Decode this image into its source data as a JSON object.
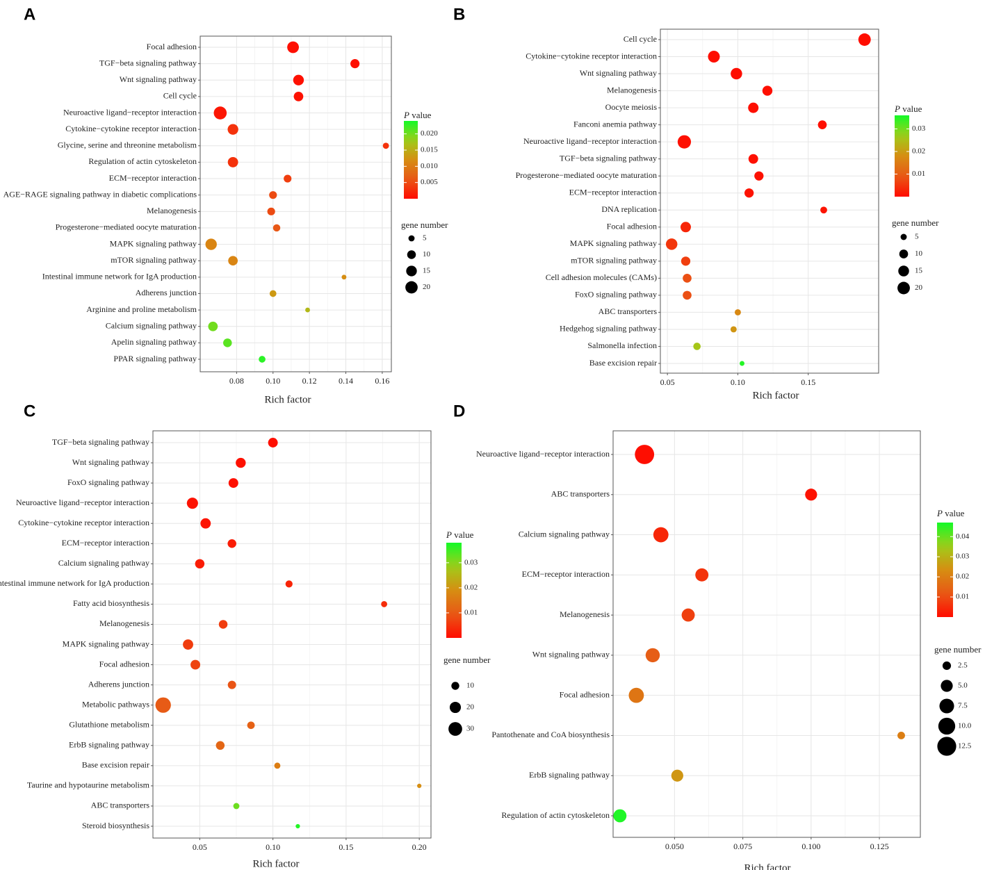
{
  "chart_data": [
    {
      "panel": "A",
      "type": "scatter",
      "xlabel": "Rich factor",
      "xlim": [
        0.06,
        0.165
      ],
      "xticks": [
        0.08,
        0.1,
        0.12,
        0.14,
        0.16
      ],
      "xtick_labels": [
        "0.08",
        "0.10",
        "0.12",
        "0.14",
        "0.16"
      ],
      "categories": [
        "Focal adhesion",
        "TGF−beta signaling pathway",
        "Wnt signaling pathway",
        "Cell cycle",
        "Neuroactive ligand−receptor interaction",
        "Cytokine−cytokine receptor interaction",
        "Glycine, serine and threonine metabolism",
        "Regulation of actin cytoskeleton",
        "ECM−receptor interaction",
        "AGE−RAGE signaling pathway in diabetic complications",
        "Melanogenesis",
        "Progesterone−mediated oocyte maturation",
        "MAPK signaling pathway",
        "mTOR signaling pathway",
        "Intestinal immune network for IgA production",
        "Adherens junction",
        "Arginine and proline metabolism",
        "Calcium signaling pathway",
        "Apelin signaling pathway",
        "PPAR signaling pathway"
      ],
      "rich_factor": [
        0.111,
        0.145,
        0.114,
        0.114,
        0.071,
        0.078,
        0.162,
        0.078,
        0.108,
        0.1,
        0.099,
        0.102,
        0.066,
        0.078,
        0.139,
        0.1,
        0.119,
        0.067,
        0.075,
        0.094
      ],
      "gene_number": [
        18,
        11,
        15,
        12,
        22,
        15,
        5,
        14,
        8,
        8,
        8,
        7,
        17,
        12,
        3,
        6,
        3,
        12,
        10,
        6
      ],
      "p_value": [
        0.0002,
        0.0003,
        0.0003,
        0.0004,
        0.0008,
        0.003,
        0.003,
        0.003,
        0.004,
        0.005,
        0.005,
        0.006,
        0.011,
        0.011,
        0.012,
        0.013,
        0.016,
        0.02,
        0.021,
        0.023
      ],
      "color_legend": {
        "title": "P value",
        "range": [
          0.0,
          0.024
        ],
        "ticks": [
          0.02,
          0.015,
          0.01,
          0.005
        ],
        "tick_labels": [
          "0.020",
          "0.015",
          "0.010",
          "0.005"
        ]
      },
      "size_legend": {
        "title": "gene number",
        "values": [
          5,
          10,
          15,
          20
        ],
        "labels": [
          "5",
          "10",
          "15",
          "20"
        ]
      }
    },
    {
      "panel": "B",
      "type": "scatter",
      "xlabel": "Rich factor",
      "xlim": [
        0.045,
        0.2
      ],
      "xticks": [
        0.05,
        0.1,
        0.15
      ],
      "xtick_labels": [
        "0.05",
        "0.10",
        "0.15"
      ],
      "categories": [
        "Cell cycle",
        "Cytokine−cytokine receptor interaction",
        "Wnt signaling pathway",
        "Melanogenesis",
        "Oocyte meiosis",
        "Fanconi anemia pathway",
        "Neuroactive ligand−receptor interaction",
        "TGF−beta signaling pathway",
        "Progesterone−mediated oocyte maturation",
        "ECM−receptor interaction",
        "DNA replication",
        "Focal adhesion",
        "MAPK signaling pathway",
        "mTOR signaling pathway",
        "Cell adhesion molecules (CAMs)",
        "FoxO signaling pathway",
        "ABC transporters",
        "Hedgehog signaling pathway",
        "Salmonella infection",
        "Base excision repair"
      ],
      "rich_factor": [
        0.19,
        0.083,
        0.099,
        0.121,
        0.111,
        0.16,
        0.062,
        0.111,
        0.115,
        0.108,
        0.161,
        0.063,
        0.053,
        0.063,
        0.064,
        0.064,
        0.1,
        0.097,
        0.071,
        0.103
      ],
      "gene_number": [
        20,
        18,
        17,
        13,
        14,
        10,
        23,
        12,
        11,
        11,
        6,
        14,
        17,
        11,
        10,
        10,
        5,
        5,
        7,
        3
      ],
      "p_value": [
        0.0001,
        0.0002,
        0.0002,
        0.0003,
        0.0003,
        0.0004,
        0.0005,
        0.0005,
        0.0006,
        0.0008,
        0.001,
        0.003,
        0.005,
        0.006,
        0.008,
        0.008,
        0.017,
        0.019,
        0.026,
        0.035
      ],
      "color_legend": {
        "title": "P value",
        "range": [
          0.0,
          0.036
        ],
        "ticks": [
          0.03,
          0.02,
          0.01
        ],
        "tick_labels": [
          "0.03",
          "0.02",
          "0.01"
        ]
      },
      "size_legend": {
        "title": "gene number",
        "values": [
          5,
          10,
          15,
          20
        ],
        "labels": [
          "5",
          "10",
          "15",
          "20"
        ]
      }
    },
    {
      "panel": "C",
      "type": "scatter",
      "xlabel": "Rich factor",
      "xlim": [
        0.018,
        0.208
      ],
      "xticks": [
        0.05,
        0.1,
        0.15,
        0.2
      ],
      "xtick_labels": [
        "0.05",
        "0.10",
        "0.15",
        "0.20"
      ],
      "categories": [
        "TGF−beta signaling pathway",
        "Wnt signaling pathway",
        "FoxO signaling pathway",
        "Neuroactive ligand−receptor interaction",
        "Cytokine−cytokine receptor interaction",
        "ECM−receptor interaction",
        "Calcium signaling pathway",
        "Intestinal immune network for IgA production",
        "Fatty acid biosynthesis",
        "Melanogenesis",
        "MAPK signaling pathway",
        "Focal adhesion",
        "Adherens junction",
        "Metabolic pathways",
        "Glutathione metabolism",
        "ErbB signaling pathway",
        "Base excision repair",
        "Taurine and hypotaurine metabolism",
        "ABC transporters",
        "Steroid biosynthesis"
      ],
      "rich_factor": [
        0.1,
        0.078,
        0.073,
        0.045,
        0.054,
        0.072,
        0.05,
        0.111,
        0.176,
        0.066,
        0.042,
        0.047,
        0.072,
        0.025,
        0.085,
        0.064,
        0.103,
        0.2,
        0.075,
        0.117
      ],
      "gene_number": [
        15,
        16,
        15,
        20,
        17,
        12,
        14,
        8,
        6,
        12,
        17,
        15,
        11,
        38,
        9,
        12,
        6,
        3,
        6,
        3
      ],
      "p_value": [
        0.0004,
        0.0005,
        0.0005,
        0.0008,
        0.001,
        0.002,
        0.002,
        0.003,
        0.004,
        0.006,
        0.006,
        0.007,
        0.009,
        0.01,
        0.011,
        0.012,
        0.016,
        0.019,
        0.032,
        0.037
      ],
      "color_legend": {
        "title": "P value",
        "range": [
          0.0,
          0.038
        ],
        "ticks": [
          0.03,
          0.02,
          0.01
        ],
        "tick_labels": [
          "0.03",
          "0.02",
          "0.01"
        ]
      },
      "size_legend": {
        "title": "gene number",
        "values": [
          10,
          20,
          30
        ],
        "labels": [
          "10",
          "20",
          "30"
        ]
      }
    },
    {
      "panel": "D",
      "type": "scatter",
      "xlabel": "Rich factor",
      "xlim": [
        0.0275,
        0.14
      ],
      "xticks": [
        0.05,
        0.075,
        0.1,
        0.125
      ],
      "xtick_labels": [
        "0.050",
        "0.075",
        "0.100",
        "0.125"
      ],
      "categories": [
        "Neuroactive ligand−receptor interaction",
        "ABC transporters",
        "Calcium signaling pathway",
        "ECM−receptor interaction",
        "Melanogenesis",
        "Wnt signaling pathway",
        "Focal adhesion",
        "Pantothenate and CoA biosynthesis",
        "ErbB signaling pathway",
        "Regulation of actin cytoskeleton"
      ],
      "rich_factor": [
        0.039,
        0.1,
        0.045,
        0.06,
        0.055,
        0.042,
        0.036,
        0.133,
        0.051,
        0.03
      ],
      "gene_number": [
        13,
        5,
        8,
        6,
        6,
        7,
        8,
        2,
        5,
        6
      ],
      "p_value": [
        0.0003,
        0.001,
        0.004,
        0.006,
        0.008,
        0.013,
        0.018,
        0.02,
        0.025,
        0.046
      ],
      "color_legend": {
        "title": "P value",
        "range": [
          0.0,
          0.047
        ],
        "ticks": [
          0.04,
          0.03,
          0.02,
          0.01
        ],
        "tick_labels": [
          "0.04",
          "0.03",
          "0.02",
          "0.01"
        ]
      },
      "size_legend": {
        "title": "gene number",
        "values": [
          2.5,
          5.0,
          7.5,
          10.0,
          12.5
        ],
        "labels": [
          "2.5",
          "5.0",
          "7.5",
          "10.0",
          "12.5"
        ]
      }
    }
  ]
}
